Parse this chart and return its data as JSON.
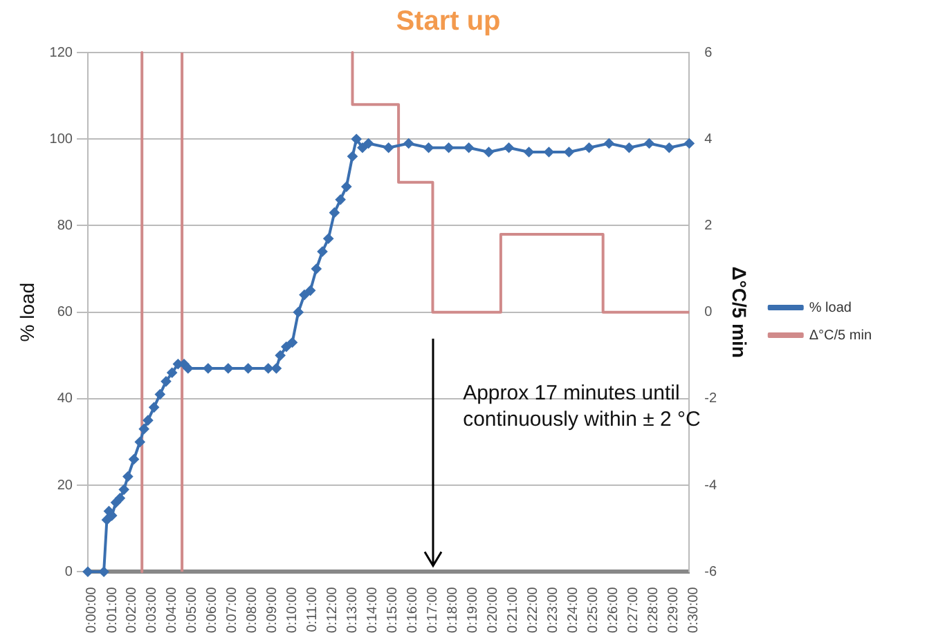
{
  "chart_data": {
    "type": "line",
    "title": "Start up",
    "ylabel": "% load",
    "y2label": "Δ°C/5 min",
    "annotations": [
      "Approx 17 minutes until continuously within ± 2 °C"
    ],
    "xlim": [
      0,
      0.5
    ],
    "ylim": [
      0,
      120
    ],
    "yticks": [
      0,
      20,
      40,
      60,
      80,
      100,
      120
    ],
    "y2lim": [
      -6,
      6
    ],
    "y2ticks": [
      -6,
      -4,
      -2,
      0,
      2,
      4,
      6
    ],
    "xticks": [
      {
        "value": 0,
        "label": "0:00:00"
      },
      {
        "value": 0.0167,
        "label": "0:01:00"
      },
      {
        "value": 0.0333,
        "label": "0:02:00"
      },
      {
        "value": 0.05,
        "label": "0:03:00"
      },
      {
        "value": 0.0667,
        "label": "0:04:00"
      },
      {
        "value": 0.0833,
        "label": "0:05:00"
      },
      {
        "value": 0.1,
        "label": "0:06:00"
      },
      {
        "value": 0.1167,
        "label": "0:07:00"
      },
      {
        "value": 0.1333,
        "label": "0:08:00"
      },
      {
        "value": 0.15,
        "label": "0:09:00"
      },
      {
        "value": 0.1667,
        "label": "0:10:00"
      },
      {
        "value": 0.1833,
        "label": "0:11:00"
      },
      {
        "value": 0.2,
        "label": "0:12:00"
      },
      {
        "value": 0.2167,
        "label": "0:13:00"
      },
      {
        "value": 0.2333,
        "label": "0:14:00"
      },
      {
        "value": 0.25,
        "label": "0:15:00"
      },
      {
        "value": 0.2667,
        "label": "0:16:00"
      },
      {
        "value": 0.2833,
        "label": "0:17:00"
      },
      {
        "value": 0.3,
        "label": "0:18:00"
      },
      {
        "value": 0.3167,
        "label": "0:19:00"
      },
      {
        "value": 0.3333,
        "label": "0:20:00"
      },
      {
        "value": 0.35,
        "label": "0:21:00"
      },
      {
        "value": 0.3667,
        "label": "0:22:00"
      },
      {
        "value": 0.3833,
        "label": "0:23:00"
      },
      {
        "value": 0.4,
        "label": "0:24:00"
      },
      {
        "value": 0.4167,
        "label": "0:25:00"
      },
      {
        "value": 0.4333,
        "label": "0:26:00"
      },
      {
        "value": 0.45,
        "label": "0:27:00"
      },
      {
        "value": 0.4667,
        "label": "0:28:00"
      },
      {
        "value": 0.4833,
        "label": "0:29:00"
      },
      {
        "value": 0.5,
        "label": "0:30:00"
      }
    ],
    "grid": "y",
    "legend": "right",
    "series": [
      {
        "name": "% load",
        "color": "#3a6fb0",
        "marker": "diamond",
        "x": [
          0,
          0.0133,
          0.0158,
          0.0175,
          0.02,
          0.0233,
          0.0267,
          0.03,
          0.0333,
          0.0383,
          0.0433,
          0.0467,
          0.05,
          0.055,
          0.06,
          0.065,
          0.07,
          0.075,
          0.08,
          0.0833,
          0.1,
          0.1167,
          0.1333,
          0.15,
          0.1567,
          0.16,
          0.165,
          0.17,
          0.175,
          0.18,
          0.185,
          0.19,
          0.195,
          0.2,
          0.205,
          0.21,
          0.215,
          0.22,
          0.2233,
          0.2283,
          0.2333,
          0.25,
          0.2667,
          0.2833,
          0.3,
          0.3167,
          0.3333,
          0.35,
          0.3667,
          0.3833,
          0.4,
          0.4167,
          0.4333,
          0.45,
          0.4667,
          0.4833,
          0.5
        ],
        "values": [
          0,
          0,
          12,
          14,
          13,
          16,
          17,
          19,
          22,
          26,
          30,
          33,
          35,
          38,
          41,
          44,
          46,
          48,
          48,
          47,
          47,
          47,
          47,
          47,
          47,
          50,
          52,
          53,
          60,
          64,
          65,
          70,
          74,
          77,
          83,
          86,
          89,
          96,
          100,
          98,
          99,
          98,
          99,
          98,
          98,
          98,
          97,
          98,
          97,
          97,
          97,
          98,
          99,
          98,
          99,
          98,
          99
        ]
      },
      {
        "name": "Δ°C/5 min",
        "color": "#d08a8a",
        "marker": "none",
        "axis": "y2",
        "x": [
          0.045,
          0.045,
          0.06,
          0.0783,
          0.0783,
          0.15,
          0.22,
          0.22,
          0.2583,
          0.2583,
          0.2867,
          0.2867,
          0.3433,
          0.3433,
          0.4283,
          0.4283,
          0.5
        ],
        "values": [
          6,
          -6,
          null,
          -6,
          6,
          null,
          6,
          4.8,
          4.8,
          3,
          3,
          0,
          0,
          1.8,
          1.8,
          0,
          0
        ]
      }
    ]
  }
}
